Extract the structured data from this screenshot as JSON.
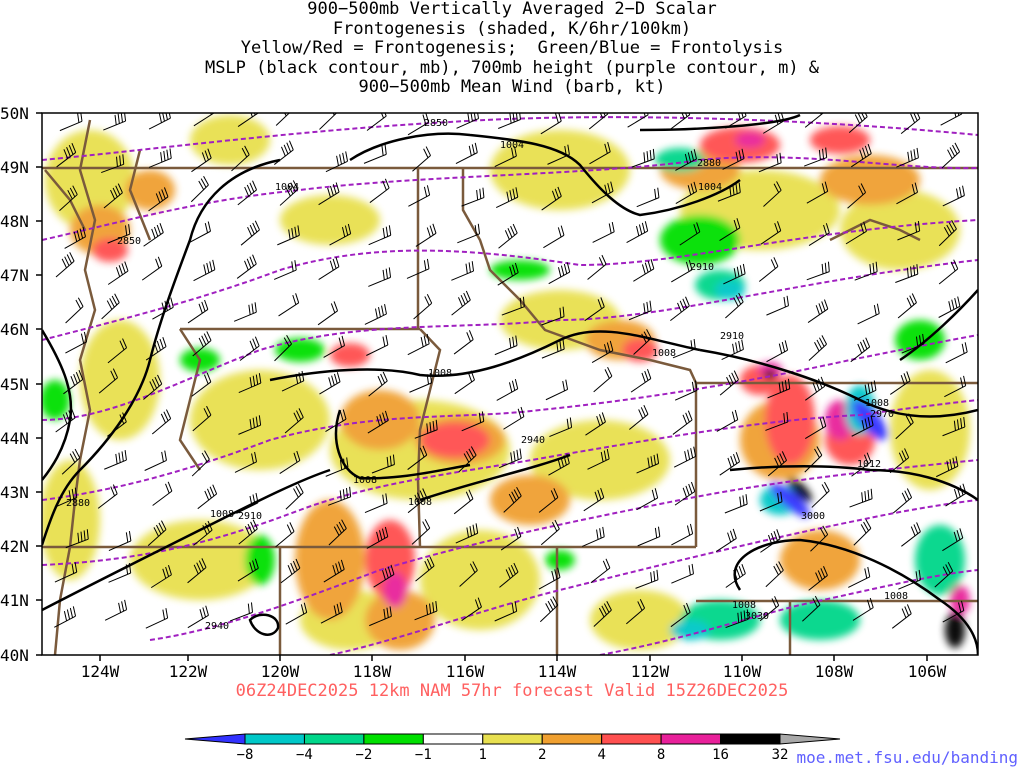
{
  "title": {
    "lines": [
      "900−500mb Vertically Averaged 2−D Scalar",
      "Frontogenesis (shaded, K/6hr/100km)",
      "Yellow/Red = Frontogenesis;  Green/Blue = Frontolysis",
      "MSLP (black contour, mb), 700mb height (purple contour, m) &",
      "900−500mb Mean Wind (barb, kt)"
    ]
  },
  "axes": {
    "lat_labels": [
      "50N",
      "49N",
      "48N",
      "47N",
      "46N",
      "45N",
      "44N",
      "43N",
      "42N",
      "41N",
      "40N"
    ],
    "lon_labels": [
      "124W",
      "122W",
      "120W",
      "118W",
      "116W",
      "114W",
      "112W",
      "110W",
      "108W",
      "106W"
    ]
  },
  "contour_labels": {
    "mslp": [
      "1004",
      "1004",
      "1004",
      "1008",
      "1008",
      "1008",
      "1008",
      "1008",
      "1008",
      "1012",
      "1008",
      "1008"
    ],
    "height": [
      "2850",
      "2850",
      "2880",
      "2880",
      "2910",
      "2910",
      "2910",
      "2940",
      "2940",
      "2970",
      "3000",
      "3030"
    ]
  },
  "colors": {
    "background": "#ffffff",
    "state_borders": "#7a5a3c",
    "mslp_contour": "#000000",
    "height_contour": "#a020c0",
    "forecast_text": "#ff6060",
    "url_text": "#6060ff"
  },
  "colorbar": {
    "ticks": [
      "−8",
      "−4",
      "−2",
      "−1",
      "1",
      "2",
      "4",
      "8",
      "16",
      "32"
    ],
    "colors": [
      "#3232ff",
      "#00c8c8",
      "#00d68a",
      "#00e000",
      "#ffffff",
      "#e8e050",
      "#f0a030",
      "#ff5050",
      "#e8209a",
      "#000000",
      "#a8a8a8"
    ]
  },
  "forecast": "06Z24DEC2025 12km NAM 57hr forecast Valid 15Z26DEC2025",
  "source_url": "moe.met.fsu.edu/banding"
}
